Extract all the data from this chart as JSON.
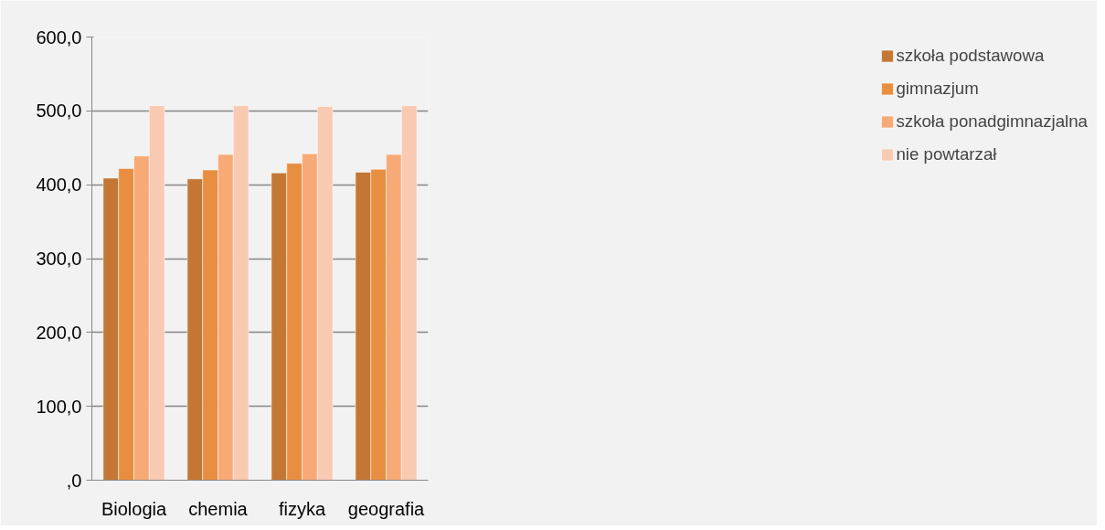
{
  "chart_data": {
    "type": "bar",
    "categories": [
      "Biologia",
      "chemia",
      "fizyka",
      "geografia"
    ],
    "series": [
      {
        "name": "szkoła podstawowa",
        "color": "#c47734",
        "values": [
          409,
          408,
          416,
          417
        ]
      },
      {
        "name": "gimnazjum",
        "color": "#e88e41",
        "values": [
          422,
          420,
          429,
          421
        ]
      },
      {
        "name": "szkoła ponadgimnazjalna",
        "color": "#f7aa76",
        "values": [
          439,
          441,
          442,
          441
        ]
      },
      {
        "name": "nie powtarzał",
        "color": "#f9cab2",
        "values": [
          507,
          507,
          506,
          507
        ]
      }
    ],
    "ylim": [
      0,
      600
    ],
    "yticks": [
      {
        "value": 0,
        "label": ",0"
      },
      {
        "value": 100,
        "label": "100,0"
      },
      {
        "value": 200,
        "label": "200,0"
      },
      {
        "value": 300,
        "label": "300,0"
      },
      {
        "value": 400,
        "label": "400,0"
      },
      {
        "value": 500,
        "label": "500,0"
      },
      {
        "value": 600,
        "label": "600,0"
      }
    ],
    "grid": "y",
    "legend": "right"
  }
}
